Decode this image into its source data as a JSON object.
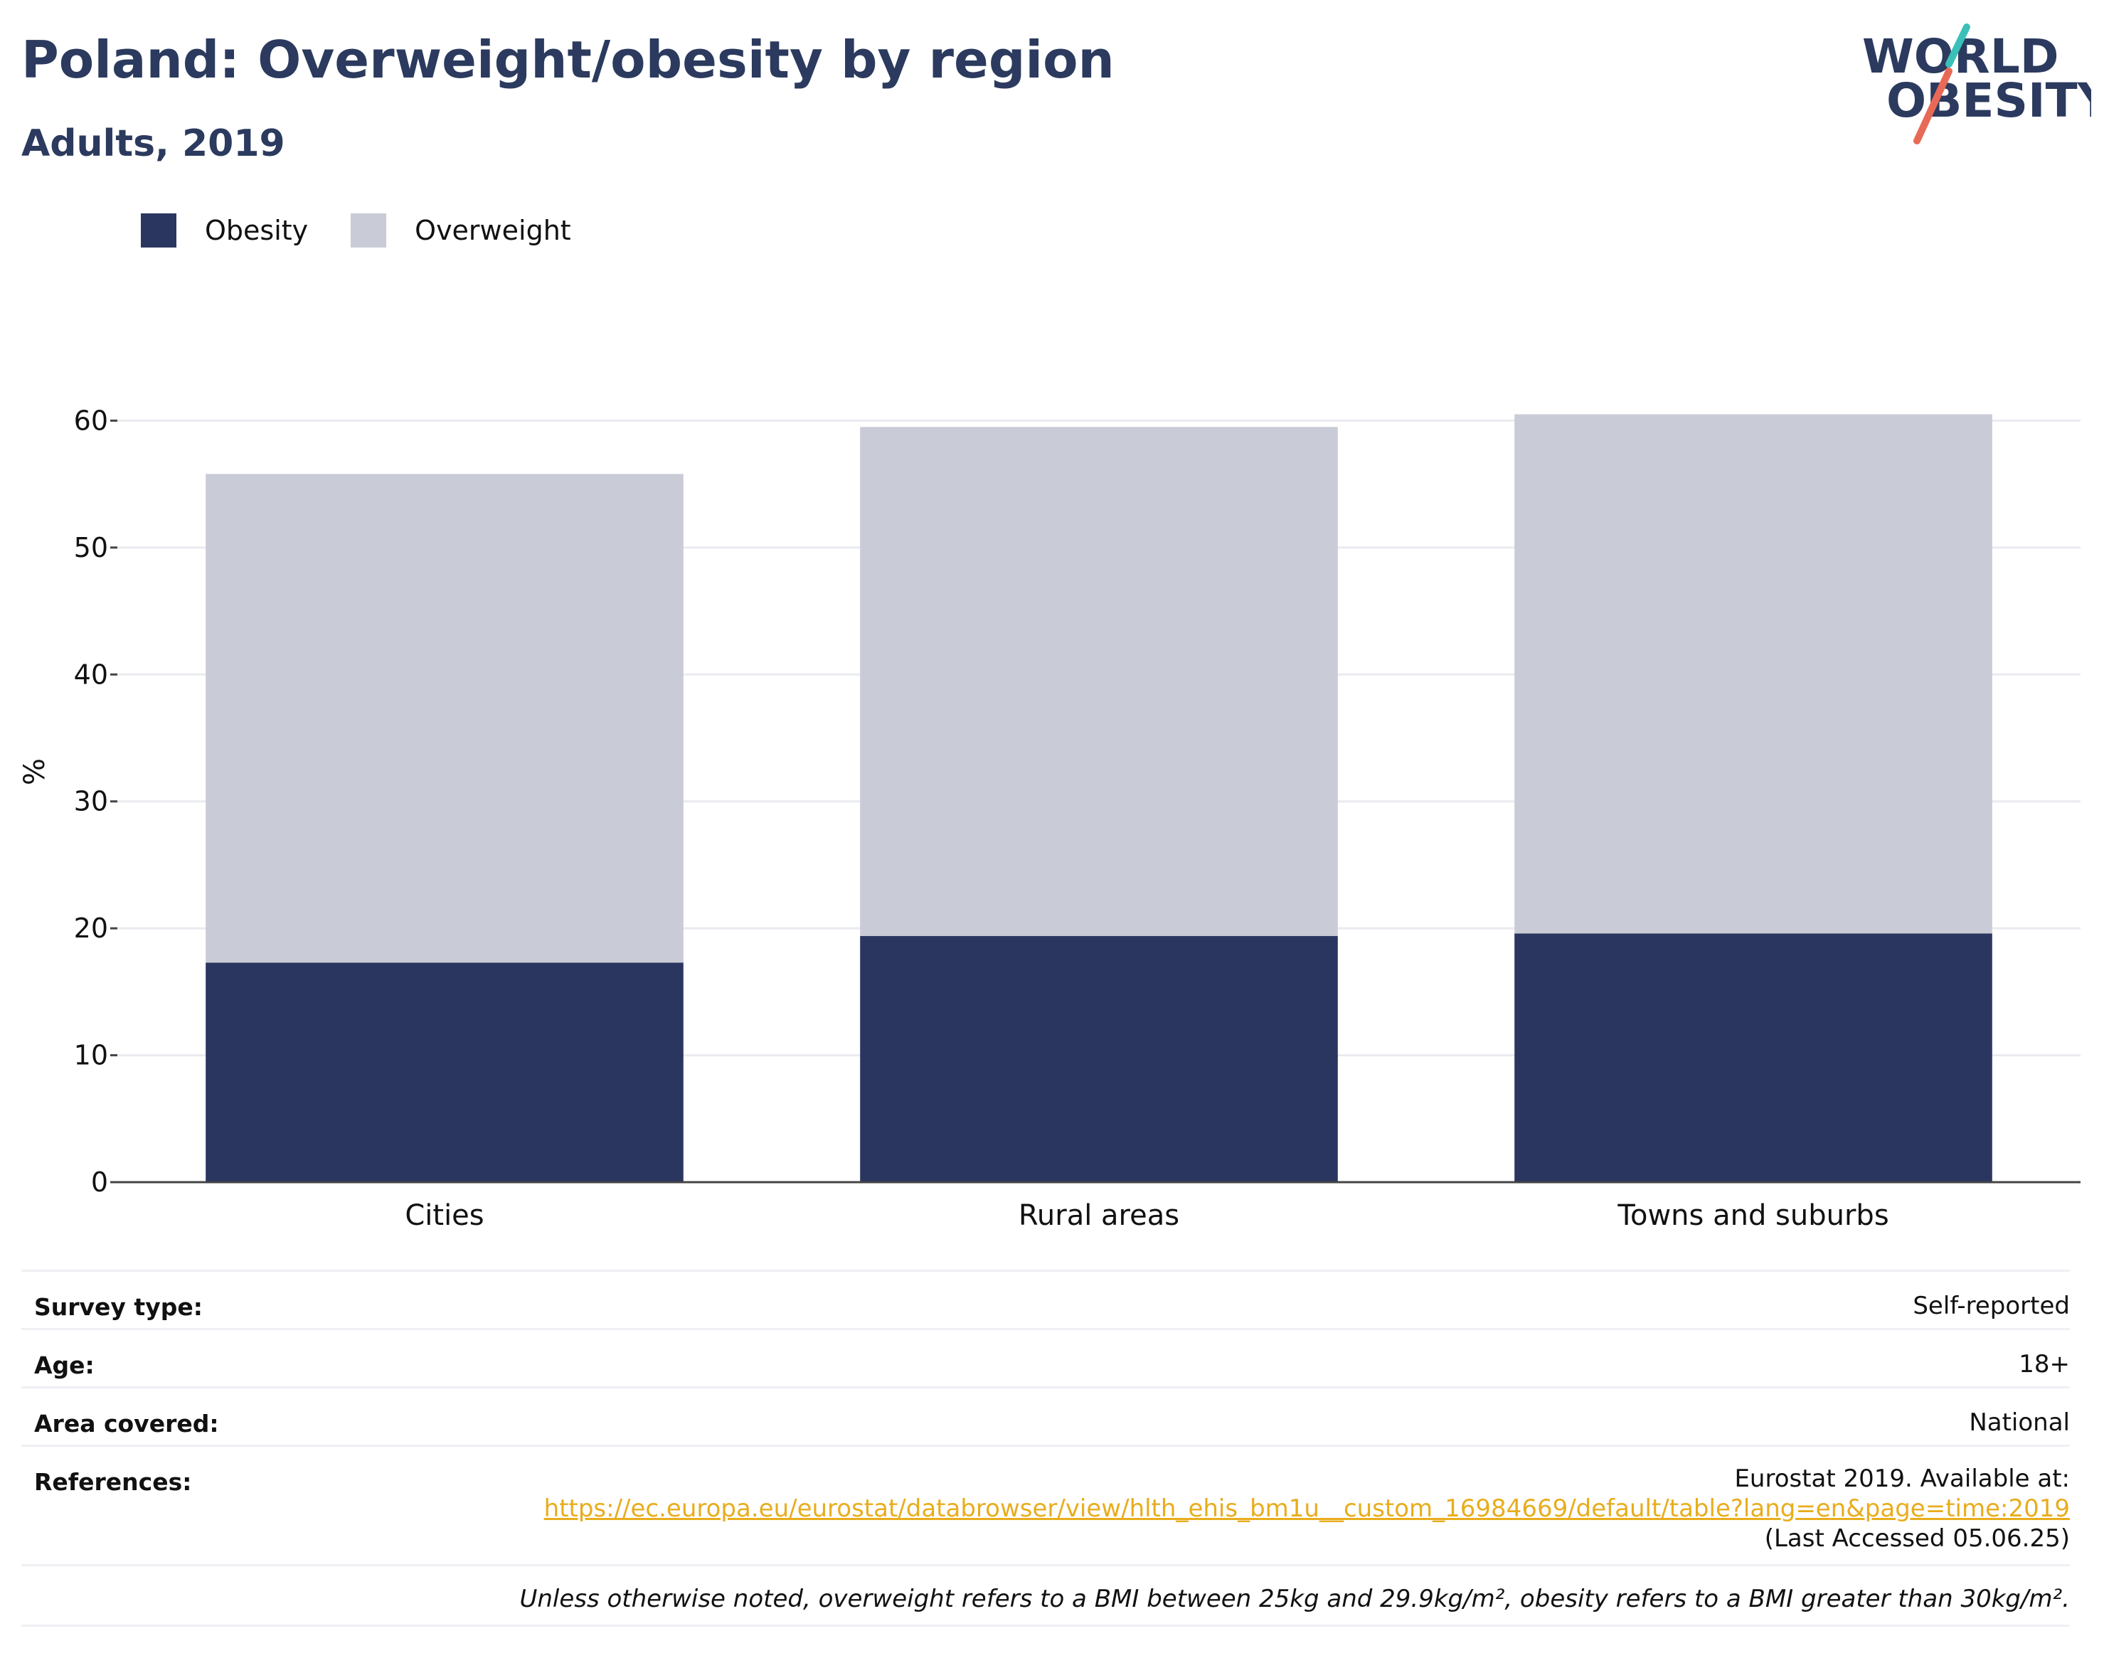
{
  "header": {
    "title": "Poland: Overweight/obesity by region",
    "subtitle": "Adults, 2019"
  },
  "logo": {
    "line1": "WORLD",
    "line2": "OBESITY",
    "colors": {
      "text": "#2b3a5e",
      "slash_top": "#3bbfb9",
      "slash_bottom": "#e86a56"
    }
  },
  "legend": {
    "items": [
      {
        "label": "Obesity",
        "color": "#2b3660"
      },
      {
        "label": "Overweight",
        "color": "#c9cbd6"
      }
    ]
  },
  "chart_data": {
    "type": "bar",
    "stacked": true,
    "categories": [
      "Cities",
      "Rural areas",
      "Towns and suburbs"
    ],
    "series": [
      {
        "name": "Obesity",
        "values": [
          17.3,
          19.4,
          19.6
        ],
        "color": "#2b3660"
      },
      {
        "name": "Overweight",
        "values": [
          38.5,
          40.1,
          40.9
        ],
        "color": "#c9cbd6"
      }
    ],
    "ylabel": "%",
    "ylim": [
      0,
      64
    ],
    "yticks": [
      0,
      10,
      20,
      30,
      40,
      50,
      60
    ],
    "grid": true,
    "legend_position": "top-left"
  },
  "meta": {
    "survey_type_label": "Survey type:",
    "survey_type_value": "Self-reported",
    "age_label": "Age:",
    "age_value": "18+",
    "area_label": "Area covered:",
    "area_value": "National",
    "references_label": "References:",
    "references_prefix": "Eurostat 2019. Available at:",
    "references_link": "https://ec.europa.eu/eurostat/databrowser/view/hlth_ehis_bm1u__custom_16984669/default/table?lang=en&page=time:2019",
    "references_suffix": "(Last Accessed 05.06.25)",
    "note": "Unless otherwise noted, overweight refers to a BMI between 25kg and 29.9kg/m², obesity refers to a BMI greater than 30kg/m²."
  }
}
